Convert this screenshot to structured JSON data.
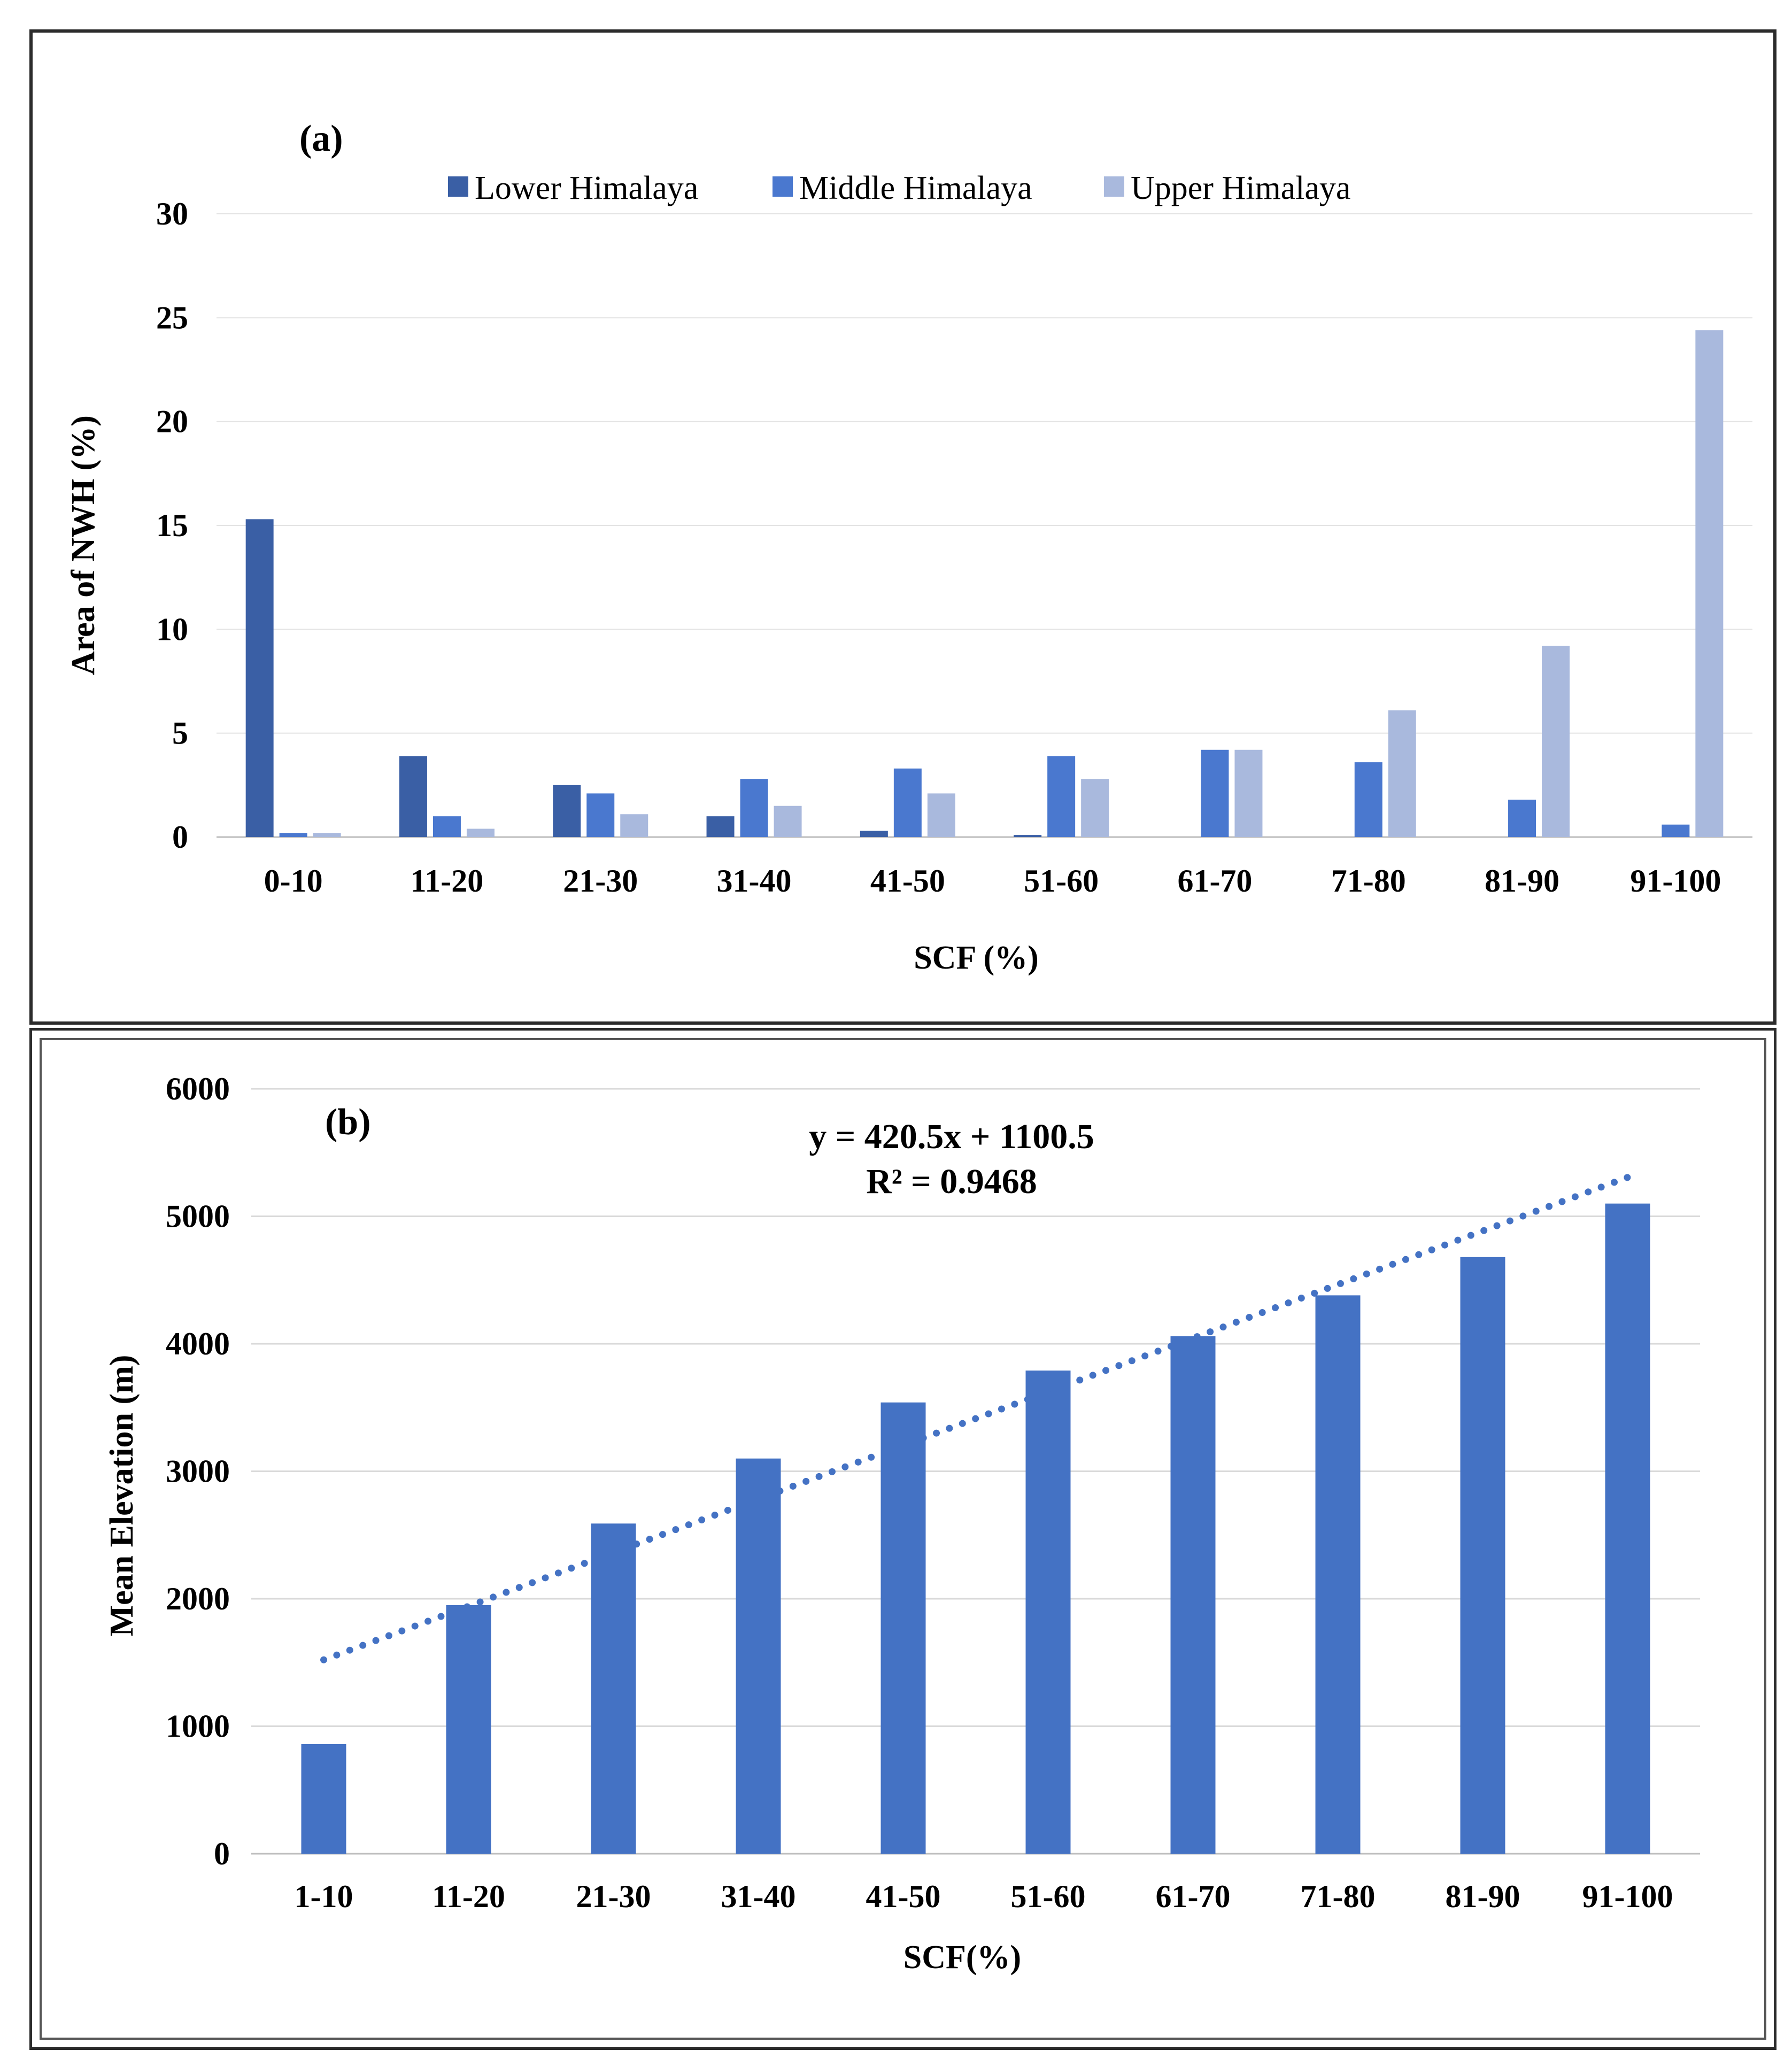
{
  "chart_data": [
    {
      "panel_label": "(a)",
      "type": "bar",
      "xlabel": "SCF (%)",
      "ylabel": "Area of NWH (%)",
      "ylim": [
        0,
        30
      ],
      "yticks": [
        "0",
        "5",
        "10",
        "15",
        "20",
        "25",
        "30"
      ],
      "ytick_values": [
        0,
        5,
        10,
        15,
        20,
        25,
        30
      ],
      "categories": [
        "0-10",
        "11-20",
        "21-30",
        "31-40",
        "41-50",
        "51-60",
        "61-70",
        "71-80",
        "81-90",
        "91-100"
      ],
      "legend_position": "top-center",
      "series": [
        {
          "name": "Lower Himalaya",
          "color": "#3a5fa5",
          "values": [
            15.3,
            3.9,
            2.5,
            1.0,
            0.3,
            0.1,
            0,
            0,
            0,
            0
          ]
        },
        {
          "name": "Middle Himalaya",
          "color": "#4a78cf",
          "values": [
            0.2,
            1.0,
            2.1,
            2.8,
            3.3,
            3.9,
            4.2,
            3.6,
            1.8,
            0.6
          ]
        },
        {
          "name": "Upper Himalaya",
          "color": "#a9b9dd",
          "values": [
            0.2,
            0.4,
            1.1,
            1.5,
            2.1,
            2.8,
            4.2,
            6.1,
            9.2,
            24.4
          ]
        }
      ]
    },
    {
      "panel_label": "(b)",
      "type": "bar",
      "xlabel": "SCF(%)",
      "ylabel": "Mean Elevation (m)",
      "ylim": [
        0,
        6000
      ],
      "yticks": [
        "0",
        "1000",
        "2000",
        "3000",
        "4000",
        "5000",
        "6000"
      ],
      "ytick_values": [
        0,
        1000,
        2000,
        3000,
        4000,
        5000,
        6000
      ],
      "categories": [
        "1-10",
        "11-20",
        "21-30",
        "31-40",
        "41-50",
        "51-60",
        "61-70",
        "71-80",
        "81-90",
        "91-100"
      ],
      "series": [
        {
          "name": "Mean Elevation",
          "color": "#4472c4",
          "values": [
            860,
            1950,
            2590,
            3100,
            3540,
            3790,
            4060,
            4380,
            4680,
            5100
          ]
        }
      ],
      "trendline": {
        "style": "dotted",
        "color": "#4472c4",
        "slope": 420.5,
        "intercept": 1100.5
      },
      "equation": "y = 420.5x + 1100.5",
      "r_squared": "R² = 0.9468"
    }
  ]
}
